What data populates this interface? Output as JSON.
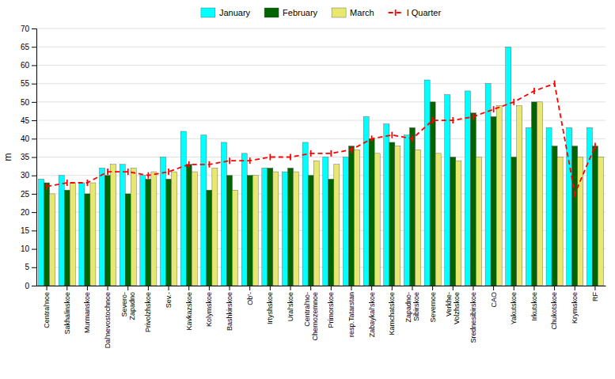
{
  "chart_data": {
    "type": "bar",
    "categories": [
      "Central'noe",
      "Sakhalinskoe",
      "Murmanskoe",
      "Dal'nevostochnoe",
      "Severo-\nZapadno",
      "Privolzhskoe",
      "Sev.-",
      "Kavkazskoe",
      "Kolymskoe",
      "Bashkirskoe",
      "Ob'-",
      "Irtyshskoe",
      "Ural'skoe",
      "Central'no-\nChernozemnoe",
      "Primorskoe",
      "resp.Tatarstan",
      "Zabaykal'skoe",
      "Kamchatskoe",
      "Zapadno-\nSibirskoe",
      "Severnoe",
      "Verkhe-\nVolzhskoe",
      "Srednesibirskoe",
      "CAO",
      "Yakutskoe",
      "Irkutskoe",
      "Chukotskoe",
      "Krymskoe",
      "RF"
    ],
    "series": [
      {
        "name": "January",
        "type": "bar",
        "color": "#00ffff",
        "values": [
          29,
          30,
          28,
          32,
          33,
          30,
          35,
          42,
          41,
          39,
          36,
          32,
          31,
          39,
          35,
          35,
          46,
          44,
          41,
          56,
          52,
          53,
          55,
          65,
          43,
          43,
          43,
          43
        ]
      },
      {
        "name": "February",
        "type": "bar",
        "color": "#006400",
        "values": [
          28,
          26,
          25,
          30,
          25,
          29,
          29,
          33,
          26,
          30,
          30,
          32,
          32,
          30,
          29,
          38,
          40,
          39,
          43,
          50,
          35,
          47,
          46,
          35,
          50,
          38,
          38,
          38
        ]
      },
      {
        "name": "March",
        "type": "bar",
        "color": "#e8e870",
        "values": [
          25,
          28,
          28,
          33,
          32,
          31,
          31,
          31,
          32,
          26,
          30,
          31,
          31,
          34,
          33,
          37,
          36,
          38,
          37,
          36,
          34,
          35,
          49,
          49,
          50,
          35,
          35,
          35
        ]
      },
      {
        "name": "I Quarter",
        "type": "line",
        "color": "#ff0000",
        "line_style": "dashed",
        "marker": "vline",
        "values": [
          27,
          28,
          28,
          31,
          31,
          30,
          31,
          33,
          33,
          34,
          34,
          35,
          35,
          36,
          36,
          37,
          40,
          41,
          40,
          45,
          45,
          46,
          48,
          50,
          53,
          55,
          25,
          38
        ]
      }
    ],
    "ylabel": "m",
    "ylim": [
      0,
      70
    ],
    "yticks": [
      0,
      5,
      10,
      15,
      20,
      25,
      30,
      35,
      40,
      45,
      50,
      55,
      60,
      65,
      70
    ],
    "grid": true,
    "legend": "top"
  }
}
